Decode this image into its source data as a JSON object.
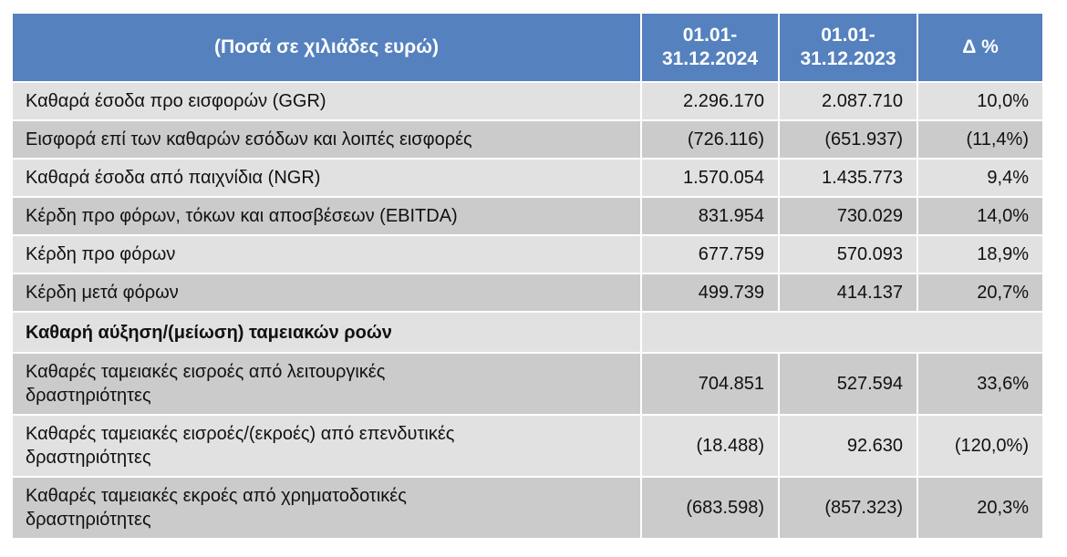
{
  "table": {
    "header": {
      "label": "(Ποσά σε χιλιάδες ευρώ)",
      "period_2024": [
        "01.01-",
        "31.12.2024"
      ],
      "period_2023": [
        "01.01-",
        "31.12.2023"
      ],
      "delta": "Δ %"
    },
    "colors": {
      "header_bg": "#5581be",
      "header_text": "#ffffff",
      "row_light": "#e1e1e1",
      "row_dark": "#cbcbcb"
    },
    "rows": [
      {
        "label": "Καθαρά έσοδα προ εισφορών (GGR)",
        "v2024": "2.296.170",
        "v2023": "2.087.710",
        "delta": "10,0%"
      },
      {
        "label": "Εισφορά επί των καθαρών εσόδων και λοιπές εισφορές",
        "v2024": "(726.116)",
        "v2023": "(651.937)",
        "delta": "(11,4%)"
      },
      {
        "label": "Καθαρά έσοδα από παιχνίδια (NGR)",
        "v2024": "1.570.054",
        "v2023": "1.435.773",
        "delta": "9,4%"
      },
      {
        "label": "Κέρδη προ φόρων, τόκων και αποσβέσεων (EBITDA)",
        "v2024": "831.954",
        "v2023": "730.029",
        "delta": "14,0%"
      },
      {
        "label": "Κέρδη προ φόρων",
        "v2024": "677.759",
        "v2023": "570.093",
        "delta": "18,9%"
      },
      {
        "label": "Κέρδη μετά φόρων",
        "v2024": "499.739",
        "v2023": "414.137",
        "delta": "20,7%"
      }
    ],
    "section": {
      "label": "Καθαρή αύξηση/(μείωση) ταμειακών ροών"
    },
    "cash_rows": [
      {
        "label": [
          "Καθαρές ταμειακές εισροές από λειτουργικές",
          "δραστηριότητες"
        ],
        "v2024": "704.851",
        "v2023": "527.594",
        "delta": "33,6%"
      },
      {
        "label": [
          "Καθαρές ταμειακές εισροές/(εκροές) από επενδυτικές",
          "δραστηριότητες"
        ],
        "v2024": "(18.488)",
        "v2023": "92.630",
        "delta": "(120,0%)"
      },
      {
        "label": [
          "Καθαρές ταμειακές εκροές από χρηματοδοτικές",
          "δραστηριότητες"
        ],
        "v2024": "(683.598)",
        "v2023": "(857.323)",
        "delta": "20,3%"
      }
    ]
  }
}
